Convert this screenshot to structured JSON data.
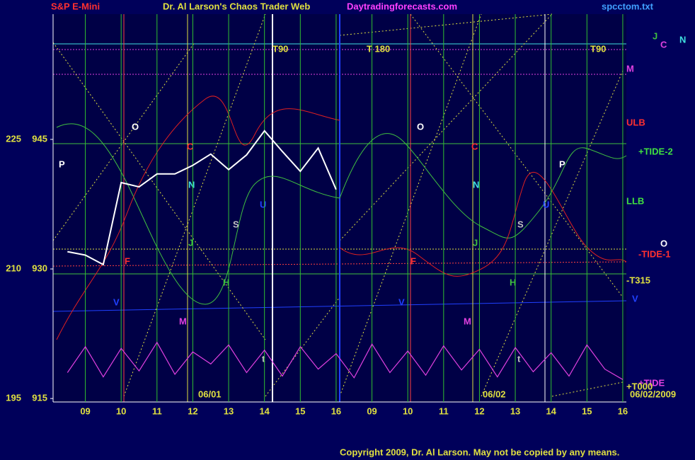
{
  "chart_data": {
    "type": "line",
    "header": [
      "S&P E-Mini",
      "Dr. Al Larson's Chaos Trader Web",
      "Daytradingforecasts.com",
      "spcctom.txt"
    ],
    "x": [
      8.5,
      9,
      9.5,
      10,
      10.5,
      11,
      11.5,
      12,
      12.5,
      13,
      13.5,
      14,
      14.5,
      15,
      15.5,
      16,
      16.5,
      17,
      17.5,
      18,
      18.5,
      19,
      19.5,
      20,
      20.5,
      21,
      21.5,
      22,
      22.5,
      23,
      23.5,
      24
    ],
    "series": [
      {
        "color": "#ffffff",
        "values": [
          932.0,
          931.6,
          930.5,
          940.0,
          939.5,
          941.0,
          941.0,
          942.0,
          943.3,
          941.5,
          943.2,
          946.0,
          943.6,
          941.3,
          944.0,
          939.2,
          null,
          null,
          null,
          null,
          null,
          null,
          null,
          null,
          null,
          null,
          null,
          null,
          null,
          null,
          null,
          null
        ]
      },
      {
        "color": "#e040e0",
        "values": [
          918.0,
          921.0,
          917.5,
          920.8,
          918.2,
          921.5,
          917.8,
          920.4,
          919.0,
          921.2,
          918.0,
          920.6,
          917.6,
          921.0,
          918.4,
          920.2,
          917.4,
          921.3,
          918.0,
          920.5,
          917.7,
          921.1,
          918.3,
          920.7,
          917.5,
          920.9,
          918.1,
          920.3,
          917.6,
          921.2,
          918.4,
          917.2
        ]
      }
    ],
    "xlim": [
      8.1,
      24.1
    ],
    "xticks": [
      {
        "value": 9,
        "label": "09"
      },
      10,
      11,
      12,
      13,
      14,
      15,
      16,
      {
        "value": 17,
        "label": "09"
      },
      {
        "value": 18,
        "label": "10"
      },
      {
        "value": 19,
        "label": "11"
      },
      {
        "value": 20,
        "label": "12"
      },
      {
        "value": 21,
        "label": "13"
      },
      {
        "value": 22,
        "label": "14"
      },
      {
        "value": 23,
        "label": "15"
      },
      {
        "value": 24,
        "label": "16"
      }
    ],
    "ylim": [
      914.6,
      959.5
    ],
    "yticks": [
      915,
      930,
      945
    ],
    "y2lim": [
      194.6,
      239.5
    ],
    "y2ticks": [
      195,
      210,
      225
    ],
    "grid": true,
    "annotations": [
      "T90",
      "T 180",
      "T90",
      "O",
      "O",
      "C",
      "C",
      "N",
      "N",
      "J",
      "J",
      "S",
      "S",
      "H",
      "H",
      "M",
      "M",
      "P",
      "P",
      "V",
      "V",
      "U",
      "U",
      "F",
      "F",
      "M",
      "ULB",
      "+TIDE-2",
      "LLB",
      "-TIDE-1",
      "-T315",
      "+TIDE",
      "+T000",
      "J",
      "C",
      "N",
      "O",
      "V",
      "06/01",
      "06/02",
      "06/02/2009",
      "t",
      "t"
    ],
    "copyright": "Copyright 2009, Dr. Al Larson. May not be copied by any means."
  }
}
